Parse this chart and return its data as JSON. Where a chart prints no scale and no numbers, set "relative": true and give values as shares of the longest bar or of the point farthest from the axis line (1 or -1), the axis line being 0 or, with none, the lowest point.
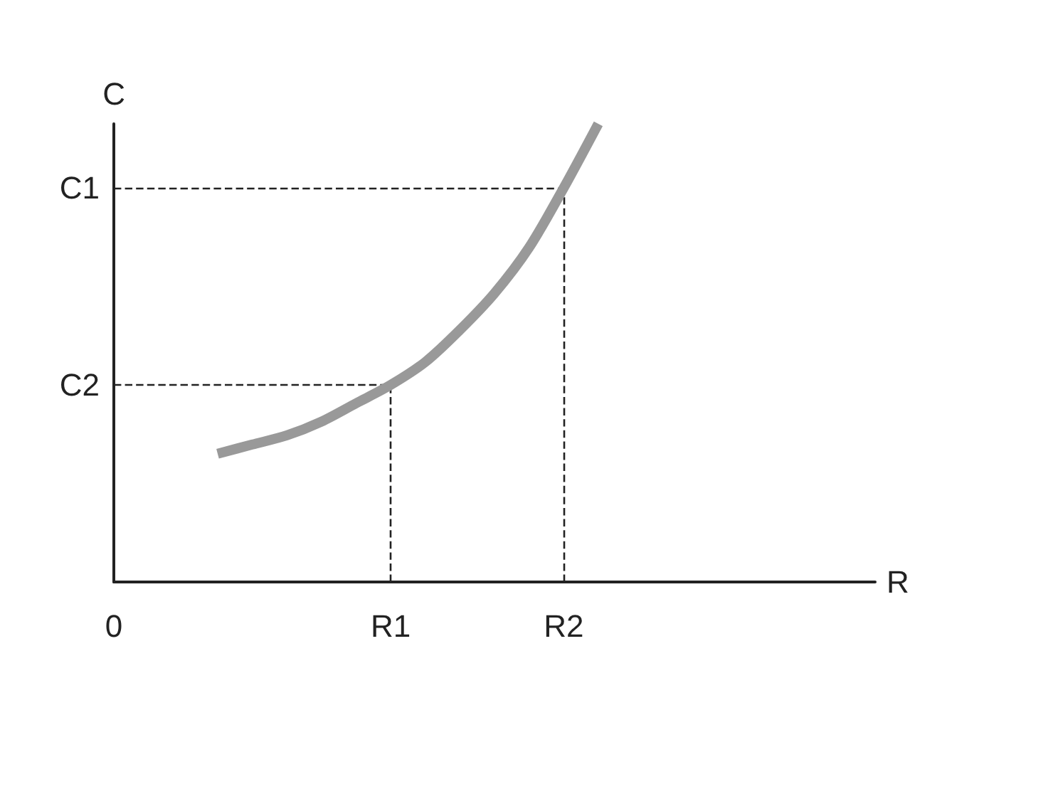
{
  "chart_data": {
    "type": "line",
    "xlabel": "R",
    "ylabel": "C",
    "relative": true,
    "categories": [
      "0",
      null,
      null,
      null,
      null,
      null,
      null,
      null,
      "R1",
      null,
      null,
      null,
      null,
      "R2",
      null,
      null,
      null,
      null,
      null,
      null,
      null,
      null,
      null
    ],
    "values": [
      null,
      null,
      null,
      0.28,
      0.3,
      0.32,
      0.35,
      0.39,
      0.43,
      0.48,
      0.55,
      0.63,
      0.73,
      0.86,
      1.0,
      null,
      null,
      null,
      null,
      null,
      null,
      null,
      null
    ],
    "color": "#999999",
    "ref_lines": [
      {
        "axis": "y",
        "value": 0.86,
        "label": "C1",
        "line_style": "dashed"
      },
      {
        "axis": "y",
        "value": 0.43,
        "label": "C2",
        "line_style": "dashed"
      },
      {
        "axis": "x",
        "value": "R1",
        "line_style": "dashed"
      },
      {
        "axis": "x",
        "value": "R2",
        "line_style": "dashed"
      }
    ]
  }
}
